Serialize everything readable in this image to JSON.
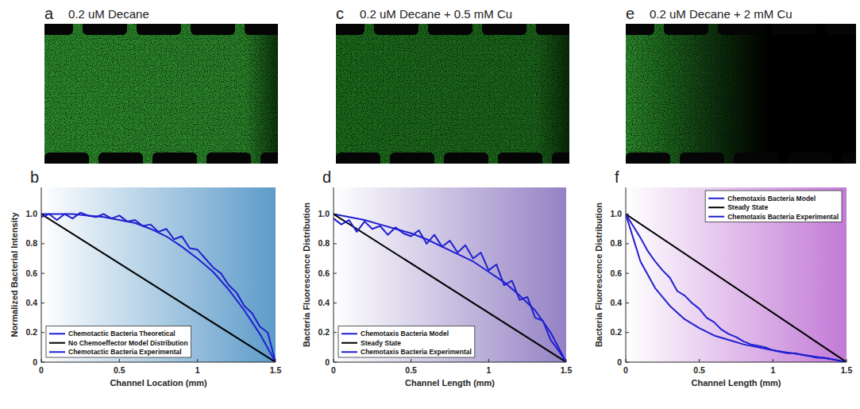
{
  "images": [
    {
      "panel_label": "a",
      "title": "0.2 uM Decane"
    },
    {
      "panel_label": "c",
      "title": "0.2 uM Decane + 0.5 mM Cu"
    },
    {
      "panel_label": "e",
      "title": "0.2 uM Decane + 2 mM Cu"
    }
  ],
  "chart_data": [
    {
      "type": "line",
      "panel_label": "b",
      "x_label": "Channel Location (mm)",
      "y_label": "Normalized Bacterial Intensity",
      "xlim": [
        0,
        1.5
      ],
      "ylim": [
        0,
        1.18
      ],
      "xticks": [
        0,
        0.5,
        1,
        1.5
      ],
      "yticks": [
        0,
        0.2,
        0.4,
        0.6,
        0.8,
        {
          "value": 1,
          "label": "1.0"
        }
      ],
      "legend": "lower left",
      "series": [
        {
          "name": "Chemotactic Bacteria Theoretical",
          "color": "#1f1fd0",
          "x": [
            0,
            0.1,
            0.2,
            0.3,
            0.4,
            0.5,
            0.6,
            0.7,
            0.8,
            0.9,
            1.0,
            1.1,
            1.2,
            1.3,
            1.4,
            1.5
          ],
          "values": [
            1,
            1,
            1,
            0.99,
            0.98,
            0.96,
            0.94,
            0.9,
            0.85,
            0.78,
            0.7,
            0.61,
            0.49,
            0.35,
            0.19,
            0
          ]
        },
        {
          "name": "No Chemoeffector Model Distribution",
          "color": "#000000",
          "x": [
            0,
            1.5
          ],
          "values": [
            1,
            0
          ]
        },
        {
          "name": "Chemotactic Bacteria Experimental",
          "color": "#1f1fd0",
          "x": [
            0,
            0.05,
            0.1,
            0.15,
            0.2,
            0.25,
            0.3,
            0.35,
            0.4,
            0.45,
            0.5,
            0.55,
            0.6,
            0.65,
            0.7,
            0.75,
            0.8,
            0.85,
            0.9,
            0.95,
            1.0,
            1.05,
            1.1,
            1.15,
            1.2,
            1.25,
            1.3,
            1.35,
            1.4,
            1.45,
            1.5
          ],
          "values": [
            0.98,
            1.0,
            0.96,
            1.0,
            0.97,
            1.01,
            0.99,
            0.98,
            1.0,
            0.97,
            0.99,
            0.95,
            0.96,
            0.92,
            0.93,
            0.88,
            0.9,
            0.83,
            0.85,
            0.77,
            0.76,
            0.7,
            0.64,
            0.6,
            0.52,
            0.47,
            0.38,
            0.33,
            0.24,
            0.2,
            0.0
          ]
        }
      ]
    },
    {
      "type": "line",
      "panel_label": "d",
      "x_label": "Channel Length (mm)",
      "y_label": "Bacteria Fluorescence Distribution",
      "xlim": [
        0,
        1.5
      ],
      "ylim": [
        0,
        1.18
      ],
      "xticks": [
        0,
        0.5,
        1,
        1.5
      ],
      "yticks": [
        0,
        0.2,
        0.4,
        0.6,
        0.8,
        {
          "value": 1,
          "label": "1.0"
        }
      ],
      "legend": "lower left",
      "series": [
        {
          "name": "Chemotaxis Bacteria Model",
          "color": "#1f1fd0",
          "x": [
            0,
            0.1,
            0.2,
            0.3,
            0.4,
            0.5,
            0.6,
            0.7,
            0.8,
            0.9,
            1.0,
            1.1,
            1.2,
            1.3,
            1.4,
            1.5
          ],
          "values": [
            1,
            0.98,
            0.96,
            0.93,
            0.9,
            0.87,
            0.83,
            0.78,
            0.73,
            0.68,
            0.61,
            0.54,
            0.45,
            0.35,
            0.2,
            0
          ]
        },
        {
          "name": "Steady State",
          "color": "#000000",
          "x": [
            0,
            1.5
          ],
          "values": [
            1,
            0
          ]
        },
        {
          "name": "Chemotaxis Bacteria Experimental",
          "color": "#1f1fd0",
          "x": [
            0,
            0.05,
            0.1,
            0.15,
            0.2,
            0.25,
            0.3,
            0.35,
            0.4,
            0.45,
            0.5,
            0.55,
            0.6,
            0.65,
            0.7,
            0.75,
            0.8,
            0.85,
            0.9,
            0.95,
            1.0,
            1.05,
            1.1,
            1.15,
            1.2,
            1.25,
            1.3,
            1.35,
            1.4,
            1.45,
            1.5
          ],
          "values": [
            0.97,
            0.93,
            0.96,
            0.88,
            0.95,
            0.9,
            0.92,
            0.86,
            0.91,
            0.87,
            0.85,
            0.89,
            0.8,
            0.86,
            0.78,
            0.82,
            0.74,
            0.79,
            0.7,
            0.74,
            0.62,
            0.66,
            0.52,
            0.55,
            0.42,
            0.44,
            0.3,
            0.28,
            0.15,
            0.08,
            0.0
          ]
        }
      ]
    },
    {
      "type": "line",
      "panel_label": "f",
      "x_label": "Channel Length (mm)",
      "y_label": "Bacteria Fluorescence Distribution",
      "xlim": [
        0,
        1.5
      ],
      "ylim": [
        0,
        1.18
      ],
      "xticks": [
        0,
        0.5,
        1,
        1.5
      ],
      "yticks": [
        0,
        0.2,
        0.4,
        0.6,
        0.8,
        {
          "value": 1,
          "label": "1.0"
        }
      ],
      "legend": "upper right",
      "series": [
        {
          "name": "Chemotaxis Bacteria Model",
          "color": "#1f1fd0",
          "x": [
            0,
            0.1,
            0.2,
            0.3,
            0.4,
            0.5,
            0.6,
            0.7,
            0.8,
            0.9,
            1.0,
            1.1,
            1.2,
            1.3,
            1.4,
            1.5
          ],
          "values": [
            1,
            0.68,
            0.5,
            0.38,
            0.29,
            0.23,
            0.18,
            0.15,
            0.12,
            0.1,
            0.08,
            0.065,
            0.05,
            0.035,
            0.02,
            0
          ]
        },
        {
          "name": "Steady State",
          "color": "#000000",
          "x": [
            0,
            1.5
          ],
          "values": [
            1,
            0
          ]
        },
        {
          "name": "Chemotaxis Bacteria Experimental",
          "color": "#1f1fd0",
          "x": [
            0,
            0.05,
            0.1,
            0.15,
            0.2,
            0.25,
            0.3,
            0.35,
            0.4,
            0.45,
            0.5,
            0.55,
            0.6,
            0.65,
            0.7,
            0.75,
            0.8,
            0.85,
            0.9,
            0.95,
            1.0,
            1.05,
            1.1,
            1.15,
            1.2,
            1.25,
            1.3,
            1.35,
            1.4,
            1.45,
            1.5
          ],
          "values": [
            1.0,
            0.92,
            0.84,
            0.75,
            0.68,
            0.62,
            0.57,
            0.48,
            0.45,
            0.4,
            0.36,
            0.3,
            0.27,
            0.22,
            0.19,
            0.17,
            0.14,
            0.12,
            0.11,
            0.1,
            0.08,
            0.07,
            0.06,
            0.06,
            0.05,
            0.04,
            0.03,
            0.03,
            0.02,
            0.01,
            0.0
          ]
        }
      ]
    }
  ]
}
